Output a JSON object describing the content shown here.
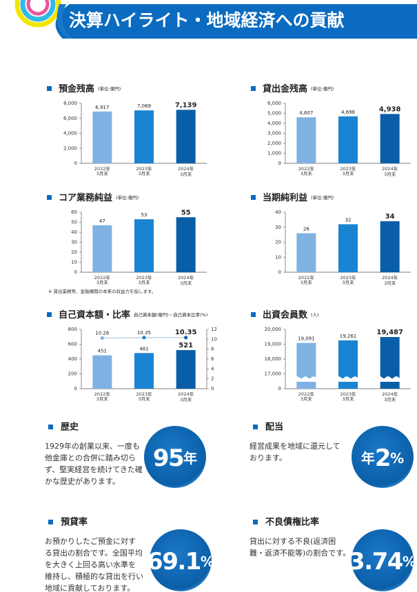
{
  "header": {
    "title": "決算ハイライト・地域経済への貢献"
  },
  "chart_data": [
    {
      "type": "bar",
      "title": "預金残高",
      "unit": "(単位:億円)",
      "categories": [
        [
          "2022年",
          "3月末"
        ],
        [
          "2023年",
          "3月末"
        ],
        [
          "2024年",
          "3月末"
        ]
      ],
      "values": [
        6917,
        7069,
        7139
      ],
      "value_labels": [
        "6,917",
        "7,069",
        "7,139"
      ],
      "colors": [
        "#7fb2e2",
        "#1b84d2",
        "#0a5ea8"
      ],
      "ylim": [
        0,
        8000
      ],
      "yticks": [
        0,
        {
          "value": 2000,
          "label": "2,000"
        },
        {
          "value": 4000,
          "label": "4,000"
        },
        {
          "value": 6000,
          "label": "6,000"
        },
        {
          "value": 8000,
          "label": "8,000"
        }
      ]
    },
    {
      "type": "bar",
      "title": "貸出金残高",
      "unit": "(単位:億円)",
      "categories": [
        [
          "2022年",
          "3月末"
        ],
        [
          "2023年",
          "3月末"
        ],
        [
          "2024年",
          "3月末"
        ]
      ],
      "values": [
        4607,
        4698,
        4938
      ],
      "value_labels": [
        "4,607",
        "4,698",
        "4,938"
      ],
      "colors": [
        "#7fb2e2",
        "#1b84d2",
        "#0a5ea8"
      ],
      "ylim": [
        0,
        6000
      ],
      "yticks": [
        0,
        {
          "value": 1000,
          "label": "1,000"
        },
        {
          "value": 2000,
          "label": "2,000"
        },
        {
          "value": 3000,
          "label": "3,000"
        },
        {
          "value": 4000,
          "label": "4,000"
        },
        {
          "value": 5000,
          "label": "5,000"
        },
        {
          "value": 6000,
          "label": "6,000"
        }
      ]
    },
    {
      "type": "bar",
      "title": "コア業務純益",
      "unit": "(単位:億円)",
      "categories": [
        [
          "2022年",
          "3月末"
        ],
        [
          "2023年",
          "3月末"
        ],
        [
          "2024年",
          "3月末"
        ]
      ],
      "values": [
        47,
        53,
        55
      ],
      "colors": [
        "#7fb2e2",
        "#1b84d2",
        "#0a5ea8"
      ],
      "ylim": [
        0,
        60
      ],
      "yticks": [
        0,
        10,
        20,
        30,
        40,
        50,
        60
      ]
    },
    {
      "type": "bar",
      "title": "当期純利益",
      "unit": "(単位:億円)",
      "categories": [
        [
          "2022年",
          "3月末"
        ],
        [
          "2023年",
          "3月末"
        ],
        [
          "2024年",
          "3月末"
        ]
      ],
      "values": [
        26,
        32,
        34
      ],
      "colors": [
        "#7fb2e2",
        "#1b84d2",
        "#0a5ea8"
      ],
      "ylim": [
        0,
        40
      ],
      "yticks": [
        0,
        10,
        20,
        30,
        40
      ]
    },
    {
      "type": "bar",
      "title": "自己資本額・比率",
      "unit": "自己資本額(億円)・自己資本比率(%)",
      "categories": [
        [
          "2022年",
          "3月末"
        ],
        [
          "2023年",
          "3月末"
        ],
        [
          "2024年",
          "3月末"
        ]
      ],
      "series": [
        {
          "values": [
            451,
            481,
            521
          ],
          "colors": [
            "#7fb2e2",
            "#1b84d2",
            "#0a5ea8"
          ]
        },
        {
          "type": "line",
          "axis": "y2",
          "color": "#9bbfe3",
          "point_colors": [
            "#7fb2e2",
            "#1b84d2",
            "#0a5ea8"
          ],
          "values": [
            10.26,
            10.35,
            10.35
          ]
        }
      ],
      "ylim": [
        0,
        800
      ],
      "yticks": [
        0,
        200,
        400,
        600,
        800
      ],
      "y2lim": [
        0,
        12
      ],
      "y2ticks": [
        0,
        2,
        4,
        6,
        8,
        10,
        12
      ]
    },
    {
      "type": "bar",
      "title": "出資会員数",
      "unit": "(人)",
      "categories": [
        [
          "2022年",
          "3月末"
        ],
        [
          "2023年",
          "3月末"
        ],
        [
          "2024年",
          "3月末"
        ]
      ],
      "values": [
        19091,
        19261,
        19487
      ],
      "value_labels": [
        "19,091",
        "19,261",
        "19,487"
      ],
      "colors": [
        "#7fb2e2",
        "#1b84d2",
        "#0a5ea8"
      ],
      "ylim": [
        16000,
        20000
      ],
      "axis_break_tick": 0,
      "yticks": [
        {
          "value": 17000,
          "label": "17,000"
        },
        {
          "value": 18000,
          "label": "18,000"
        },
        {
          "value": 19000,
          "label": "19,000"
        },
        {
          "value": 20000,
          "label": "20,000"
        }
      ]
    }
  ],
  "note": "※ 貸出業務等、金融機関の本来の収益力を指します。",
  "sections": [
    {
      "title": "歴史",
      "lines": [
        "1929年の創業以来、一度も",
        "他金庫との合併に踏み切ら",
        "ず、堅実経営を続けてきた確",
        "かな歴史があります。"
      ],
      "badge": {
        "num": "95",
        "post": "年"
      }
    },
    {
      "title": "配当",
      "lines": [
        "経営成果を地域に還元して",
        "おります。"
      ],
      "badge": {
        "pre": "年",
        "num": "2",
        "post": "%"
      }
    },
    {
      "title": "預貸率",
      "lines": [
        "お預かりしたご預金に対す",
        "る貸出の割合です。全国平均",
        "を大きく上回る高い水準を",
        "維持し、積極的な貸出を行い",
        "地域に貢献しております。"
      ],
      "badge": {
        "num": "69.1",
        "post": "%"
      }
    },
    {
      "title": "不良債権比率",
      "lines": [
        "貸出に対する不良(返済困",
        "難・返済不能等)の割合です。"
      ],
      "badge": {
        "num": "3.74",
        "post": "%"
      }
    }
  ]
}
